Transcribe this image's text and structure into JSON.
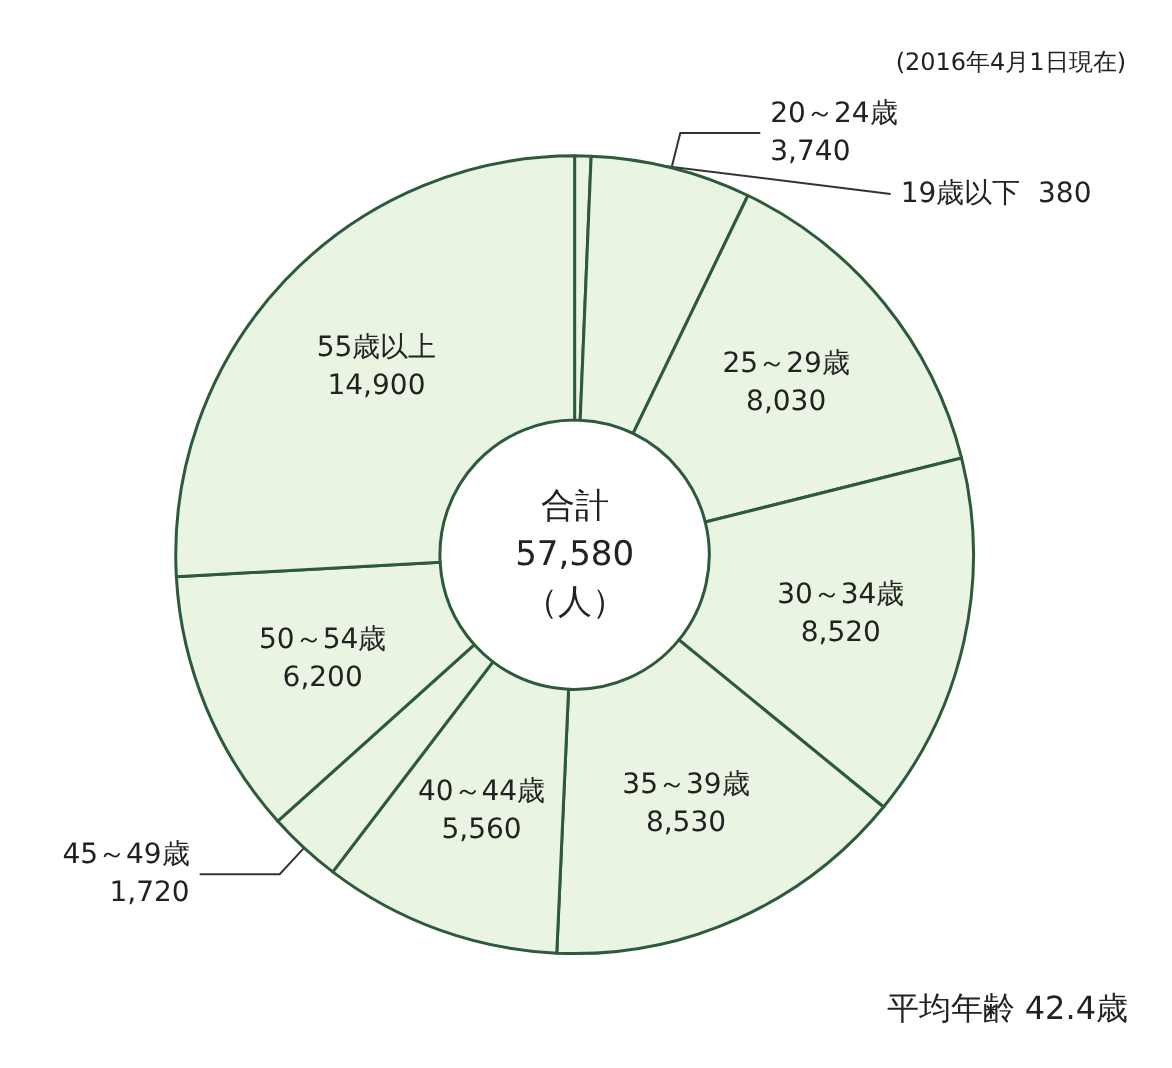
{
  "chart_data": {
    "type": "donut",
    "subtitle": "(2016年4月1日現在)",
    "categories": [
      "19歳以下",
      "20～24歳",
      "25～29歳",
      "30～34歳",
      "35～39歳",
      "40～44歳",
      "45～49歳",
      "50～54歳",
      "55歳以上"
    ],
    "values": [
      380,
      3740,
      8030,
      8520,
      8530,
      5560,
      1720,
      6200,
      14900
    ],
    "colors": [
      "#eaf4e3",
      "#eaf4e3",
      "#eaf4e3",
      "#eaf4e3",
      "#eaf4e3",
      "#eaf4e3",
      "#eaf4e3",
      "#eaf4e3",
      "#eaf4e3"
    ],
    "value_labels": [
      "380",
      "3,740",
      "8,030",
      "8,520",
      "8,530",
      "5,560",
      "1,720",
      "6,200",
      "14,900"
    ],
    "annotations": [
      "合計\n57,580\n（人）",
      "平均年齢 42.4歳"
    ]
  }
}
